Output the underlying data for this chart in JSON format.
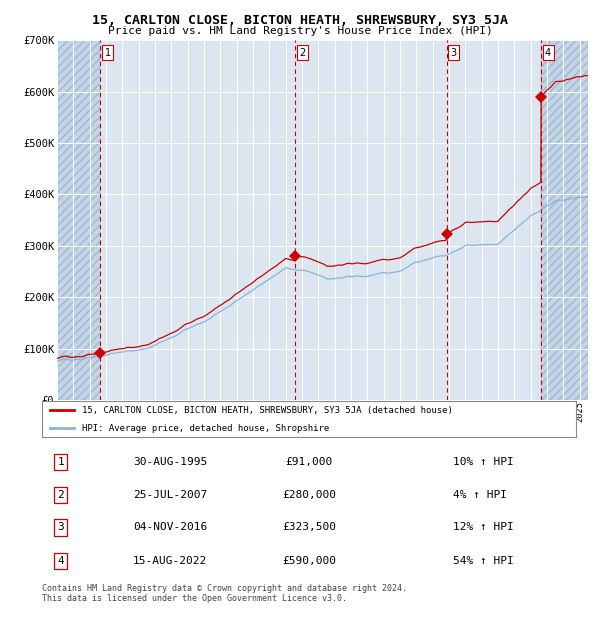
{
  "title": "15, CARLTON CLOSE, BICTON HEATH, SHREWSBURY, SY3 5JA",
  "subtitle": "Price paid vs. HM Land Registry's House Price Index (HPI)",
  "background_color": "#ffffff",
  "plot_bg_color": "#dce6f1",
  "hatch_color": "#c5d5e8",
  "grid_color": "#ffffff",
  "ylim": [
    0,
    700000
  ],
  "yticks": [
    0,
    100000,
    200000,
    300000,
    400000,
    500000,
    600000,
    700000
  ],
  "ytick_labels": [
    "£0",
    "£100K",
    "£200K",
    "£300K",
    "£400K",
    "£500K",
    "£600K",
    "£700K"
  ],
  "sales": [
    {
      "date_num": 1995.66,
      "price": 91000,
      "label": "1"
    },
    {
      "date_num": 2007.57,
      "price": 280000,
      "label": "2"
    },
    {
      "date_num": 2016.84,
      "price": 323500,
      "label": "3"
    },
    {
      "date_num": 2022.62,
      "price": 590000,
      "label": "4"
    }
  ],
  "sale_dates_str": [
    "30-AUG-1995",
    "25-JUL-2007",
    "04-NOV-2016",
    "15-AUG-2022"
  ],
  "sale_prices_str": [
    "£91,000",
    "£280,000",
    "£323,500",
    "£590,000"
  ],
  "sale_hpi_str": [
    "10% ↑ HPI",
    "4% ↑ HPI",
    "12% ↑ HPI",
    "54% ↑ HPI"
  ],
  "legend_line1": "15, CARLTON CLOSE, BICTON HEATH, SHREWSBURY, SY3 5JA (detached house)",
  "legend_line2": "HPI: Average price, detached house, Shropshire",
  "footer": "Contains HM Land Registry data © Crown copyright and database right 2024.\nThis data is licensed under the Open Government Licence v3.0.",
  "hpi_color": "#8ab4d8",
  "price_color": "#cc0000",
  "marker_color": "#cc0000",
  "vline_color": "#cc0000",
  "xmin": 1993.0,
  "xmax": 2025.5,
  "hpi_anchors_t": [
    1993.0,
    1995.0,
    1998.0,
    2000.0,
    2002.0,
    2004.0,
    2007.0,
    2008.5,
    2009.5,
    2012.0,
    2014.0,
    2016.0,
    2018.0,
    2020.0,
    2022.0,
    2023.5,
    2025.5
  ],
  "hpi_anchors_v": [
    75000,
    82000,
    100000,
    125000,
    155000,
    195000,
    260000,
    250000,
    235000,
    242000,
    255000,
    285000,
    305000,
    310000,
    365000,
    390000,
    395000
  ]
}
